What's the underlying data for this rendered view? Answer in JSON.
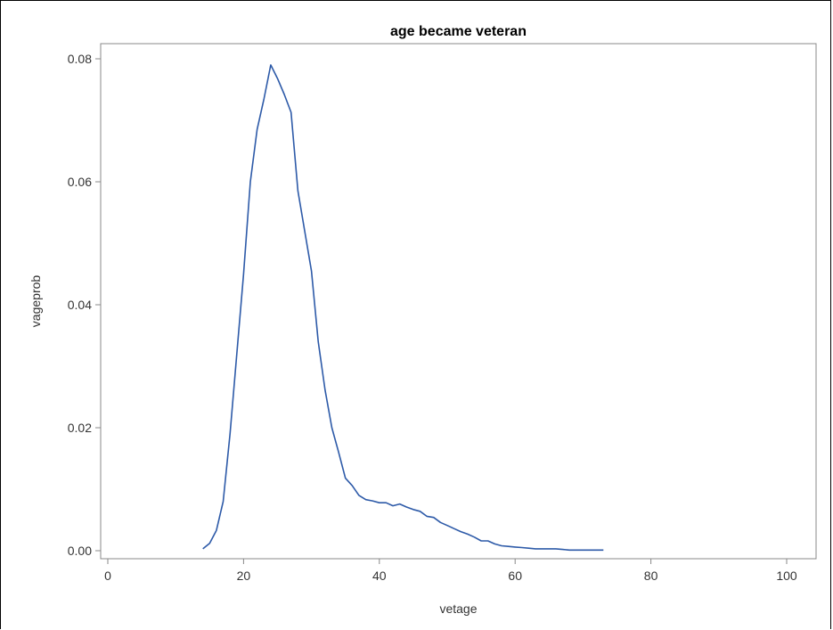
{
  "chart_data": {
    "type": "line",
    "title": "age became veteran",
    "xlabel": "vetage",
    "ylabel": "vageprob",
    "xlim": [
      0,
      105
    ],
    "ylim": [
      0,
      0.0805
    ],
    "x_ticks": [
      0,
      20,
      40,
      60,
      80,
      100
    ],
    "x_tick_labels": [
      "0",
      "20",
      "40",
      "60",
      "80",
      "100"
    ],
    "y_ticks": [
      0,
      0.02,
      0.04,
      0.06,
      0.08
    ],
    "y_tick_labels": [
      "0.00",
      "0.02",
      "0.04",
      "0.06",
      "0.08"
    ],
    "grid": false,
    "line_color": "#2d5aa8",
    "series": [
      {
        "x": [
          14,
          15,
          16,
          17,
          18,
          19,
          20,
          21,
          22,
          23,
          24,
          25,
          26,
          27,
          28,
          29,
          30,
          31,
          32,
          33,
          34,
          35,
          36,
          37,
          38,
          39,
          40,
          41,
          42,
          43,
          44,
          45,
          46,
          47,
          48,
          49,
          50,
          51,
          52,
          53,
          54,
          55,
          56,
          57,
          58,
          59,
          60,
          61,
          62,
          63,
          64,
          65,
          66,
          67,
          68,
          69,
          70,
          71,
          72,
          73
        ],
        "y": [
          0.0003,
          0.0012,
          0.0033,
          0.008,
          0.019,
          0.032,
          0.045,
          0.06,
          0.0685,
          0.0735,
          0.079,
          0.0768,
          0.0742,
          0.0713,
          0.0585,
          0.052,
          0.0455,
          0.034,
          0.0262,
          0.02,
          0.016,
          0.0118,
          0.0106,
          0.009,
          0.0083,
          0.0081,
          0.0078,
          0.0078,
          0.0073,
          0.0076,
          0.0071,
          0.0067,
          0.0064,
          0.0056,
          0.0054,
          0.0046,
          0.0041,
          0.0036,
          0.0031,
          0.0027,
          0.0022,
          0.0016,
          0.0016,
          0.0011,
          0.0008,
          0.0007,
          0.0006,
          0.0005,
          0.0004,
          0.0003,
          0.0003,
          0.0003,
          0.0003,
          0.0002,
          0.0001,
          0.0001,
          0.0001,
          0.0001,
          0.0001,
          0.0001
        ]
      }
    ]
  }
}
